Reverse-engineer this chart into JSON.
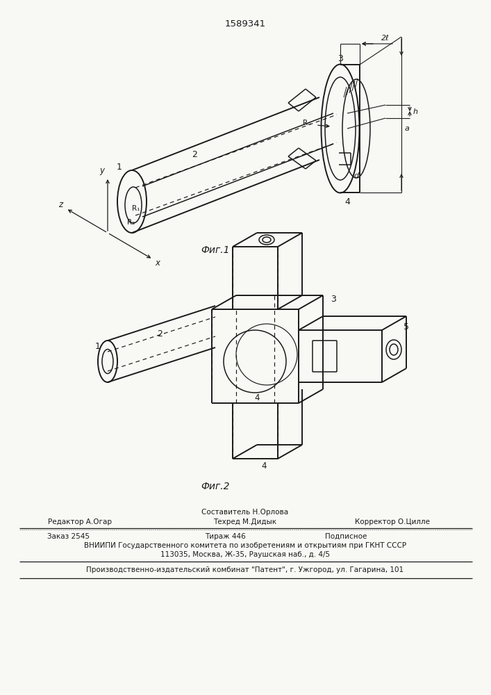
{
  "patent_number": "1589341",
  "background_color": "#f8f8f5",
  "fig_label1": "Фиг.1",
  "fig_label2": "Фиг.2",
  "footer": {
    "editor": "Редактор А.Огар",
    "composer": "Составитель Н.Орлова",
    "techred": "Техред М.Дидык",
    "corrector": "Корректор О.Цилле",
    "order": "Заказ 2545",
    "tirazh": "Тираж 446",
    "podpisnoe": "Подписное",
    "vniip1": "ВНИИПИ Государственного комитета по изобретениям и открытиям при ГКНТ СССР",
    "vniip2": "113035, Москва, Ж-35, Раушская наб., д. 4/5",
    "patent": "Производственно-издательский комбинат \"Патент\", г. Ужгород, ул. Гагарина, 101"
  }
}
